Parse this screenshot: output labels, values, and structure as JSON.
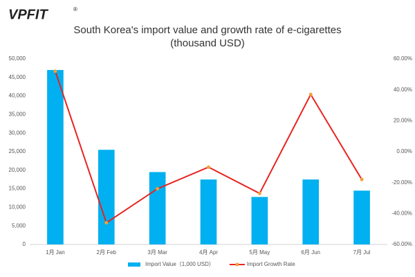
{
  "logo": "VPFIT",
  "logo_mark": "®",
  "chart_data": {
    "type": "bar",
    "title": "South Korea's import value and growth rate of e-cigarettes",
    "subtitle": "(thousand USD)",
    "categories": [
      "1月 Jan",
      "2月 Feb",
      "3月 Mar",
      "4月 Apr",
      "5月 May",
      "6月 Jun",
      "7月 Jul"
    ],
    "series": [
      {
        "name": "Import Value（1,000 USD）",
        "type": "bar",
        "color": "#00b0f0",
        "values": [
          47000,
          25500,
          19500,
          17500,
          12800,
          17500,
          14500
        ]
      },
      {
        "name": "Import Growth Rate",
        "type": "line",
        "axis": "y2",
        "color": "#e8231f",
        "marker_color": "#f2a03a",
        "values": [
          52,
          -46,
          -24,
          -10,
          -27,
          37,
          -18
        ]
      }
    ],
    "ylim": [
      0,
      50000
    ],
    "yticks": [
      0,
      {
        "value": 5000,
        "label": "5,000"
      },
      {
        "value": 10000,
        "label": "10,000"
      },
      {
        "value": 15000,
        "label": "15,000"
      },
      {
        "value": 20000,
        "label": "20,000"
      },
      {
        "value": 25000,
        "label": "25,000"
      },
      {
        "value": 30000,
        "label": "30,000"
      },
      {
        "value": 35000,
        "label": "35,000"
      },
      {
        "value": 40000,
        "label": "40,000"
      },
      {
        "value": 45000,
        "label": "45,000"
      },
      {
        "value": 50000,
        "label": "50,000"
      }
    ],
    "y2lim": [
      -60,
      60
    ],
    "y2ticks": [
      {
        "value": -60,
        "label": "-60.00%"
      },
      {
        "value": -40,
        "label": "-40.00%"
      },
      {
        "value": -20,
        "label": "-20.00%"
      },
      {
        "value": 0,
        "label": "0.00%"
      },
      {
        "value": 20,
        "label": "20.00%"
      },
      {
        "value": 40,
        "label": "40.00%"
      },
      {
        "value": 60,
        "label": "60.00%"
      }
    ],
    "grid": false,
    "legend": "bottom"
  }
}
